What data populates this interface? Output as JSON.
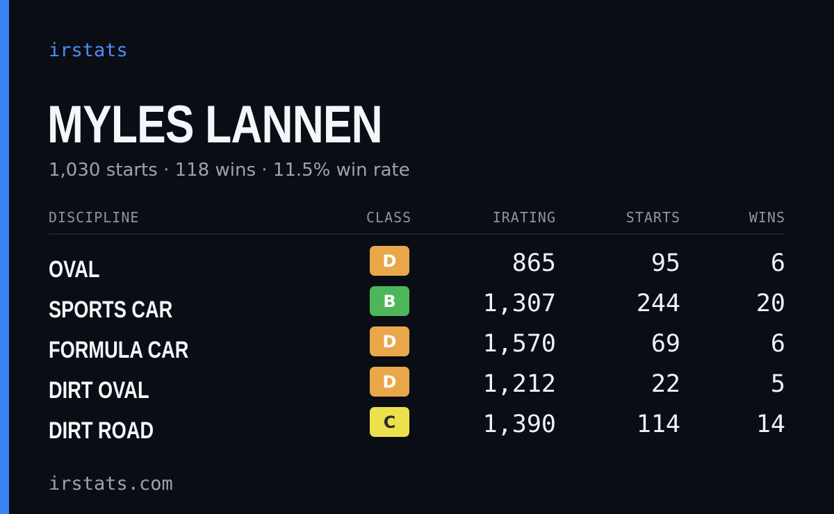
{
  "brand": "irstats",
  "player": {
    "name": "MYLES LANNEN",
    "summary": "1,030 starts · 118 wins · 11.5% win rate"
  },
  "table": {
    "headers": {
      "discipline": "DISCIPLINE",
      "class": "CLASS",
      "irating": "IRATING",
      "starts": "STARTS",
      "wins": "WINS"
    },
    "rows": [
      {
        "discipline": "OVAL",
        "class": "D",
        "class_color": "#e8a84a",
        "class_text_color": "#ffffff",
        "irating": "865",
        "starts": "95",
        "wins": "6"
      },
      {
        "discipline": "SPORTS CAR",
        "class": "B",
        "class_color": "#4db65a",
        "class_text_color": "#ffffff",
        "irating": "1,307",
        "starts": "244",
        "wins": "20"
      },
      {
        "discipline": "FORMULA CAR",
        "class": "D",
        "class_color": "#e8a84a",
        "class_text_color": "#ffffff",
        "irating": "1,570",
        "starts": "69",
        "wins": "6"
      },
      {
        "discipline": "DIRT OVAL",
        "class": "D",
        "class_color": "#e8a84a",
        "class_text_color": "#ffffff",
        "irating": "1,212",
        "starts": "22",
        "wins": "5"
      },
      {
        "discipline": "DIRT ROAD",
        "class": "C",
        "class_color": "#ede04d",
        "class_text_color": "#2a2a2a",
        "irating": "1,390",
        "starts": "114",
        "wins": "14"
      }
    ]
  },
  "footer": {
    "url": "irstats.com"
  },
  "colors": {
    "background": "#0a0d14",
    "accent": "#3b82f6",
    "brand": "#4c8df6",
    "muted": "#9aa3b2"
  }
}
